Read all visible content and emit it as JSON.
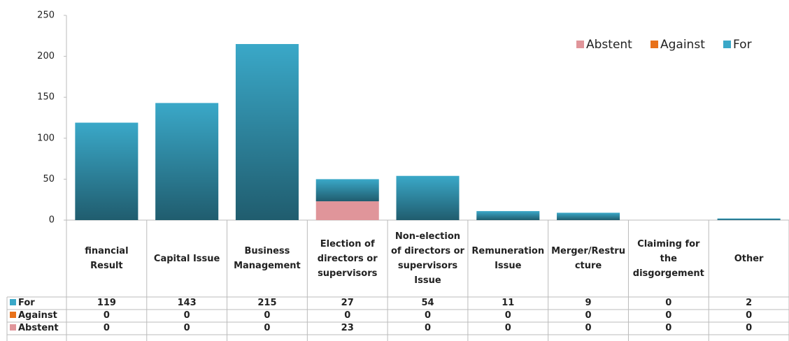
{
  "chart_data": {
    "type": "stacked_bar",
    "categories": [
      "financial Result",
      "Capital Issue",
      "Business Management",
      "Election of directors or supervisors",
      "Non-election of directors or supervisors Issue",
      "Remuneration Issue",
      "Merger/Restructure",
      "Claiming for the disgorgement",
      "Other"
    ],
    "series": [
      {
        "name": "For",
        "color": "#3aa8c8",
        "values": [
          119,
          143,
          215,
          27,
          54,
          11,
          9,
          0,
          2
        ]
      },
      {
        "name": "Against",
        "color": "#e8711a",
        "values": [
          0,
          0,
          0,
          0,
          0,
          0,
          0,
          0,
          0
        ]
      },
      {
        "name": "Abstent",
        "color": "#e0959a",
        "values": [
          0,
          0,
          0,
          23,
          0,
          0,
          0,
          0,
          0
        ]
      }
    ],
    "stack_order": [
      "Abstent",
      "Against",
      "For"
    ],
    "ylim": [
      0,
      250
    ],
    "yticks": [
      0,
      50,
      100,
      150,
      200,
      250
    ],
    "legend": "upper right",
    "data_table": true
  }
}
